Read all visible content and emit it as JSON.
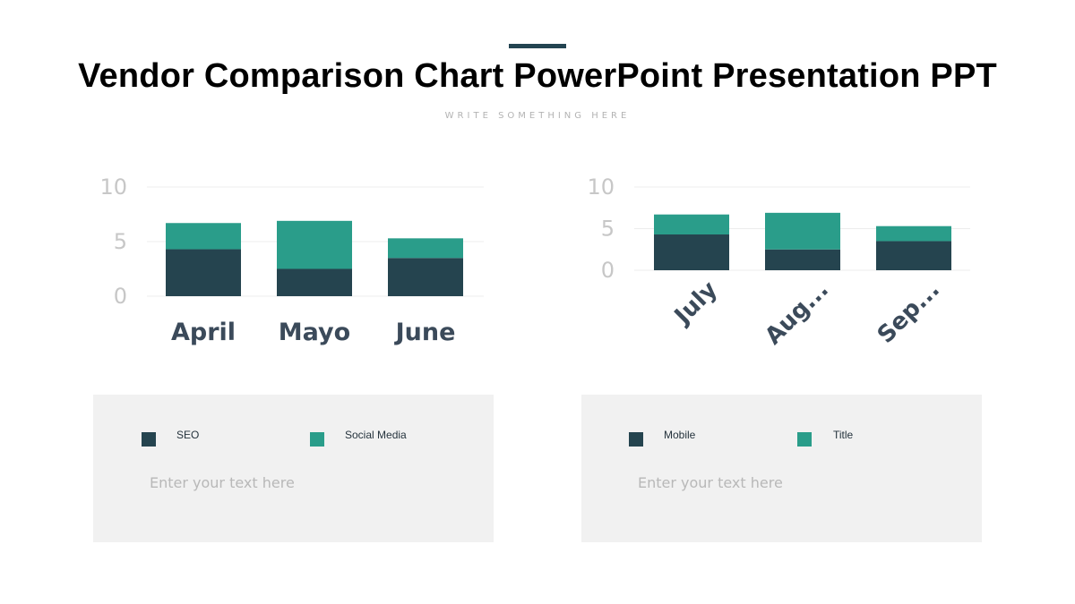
{
  "slide": {
    "title": "Vendor Comparison Chart PowerPoint Presentation PPT",
    "subtitle": "WRITE SOMETHING HERE"
  },
  "colors": {
    "accent": "#234451",
    "dark": "#25444f",
    "teal": "#2a9d8a",
    "panel": "#f1f1f1",
    "axis_text": "#c7c7c7",
    "category_text": "#3b4a5a"
  },
  "chart_data": [
    {
      "type": "bar",
      "stacked": true,
      "categories": [
        "April",
        "Mayo",
        "June"
      ],
      "series": [
        {
          "name": "SEO",
          "values": [
            4.3,
            2.5,
            3.5
          ],
          "color": "#25444f"
        },
        {
          "name": "Social Media",
          "values": [
            2.4,
            4.4,
            1.8
          ],
          "color": "#2a9d8a"
        }
      ],
      "ylim": [
        0,
        10
      ],
      "yticks": [
        "0",
        "5",
        "10"
      ],
      "grid": true,
      "category_rotation": 0
    },
    {
      "type": "bar",
      "stacked": true,
      "categories": [
        "July",
        "Aug...",
        "Sep..."
      ],
      "series": [
        {
          "name": "Mobile",
          "values": [
            4.3,
            2.5,
            3.5
          ],
          "color": "#25444f"
        },
        {
          "name": "Title",
          "values": [
            2.4,
            4.4,
            1.8
          ],
          "color": "#2a9d8a"
        }
      ],
      "ylim": [
        0,
        10
      ],
      "yticks": [
        "0",
        "5",
        "10"
      ],
      "grid": true,
      "category_rotation": -45
    }
  ],
  "legends": [
    {
      "items": [
        {
          "label": "SEO",
          "color": "#25444f"
        },
        {
          "label": "Social Media",
          "color": "#2a9d8a"
        }
      ],
      "text": "Enter your text here"
    },
    {
      "items": [
        {
          "label": "Mobile",
          "color": "#25444f"
        },
        {
          "label": "Title",
          "color": "#2a9d8a"
        }
      ],
      "text": "Enter your text here"
    }
  ]
}
